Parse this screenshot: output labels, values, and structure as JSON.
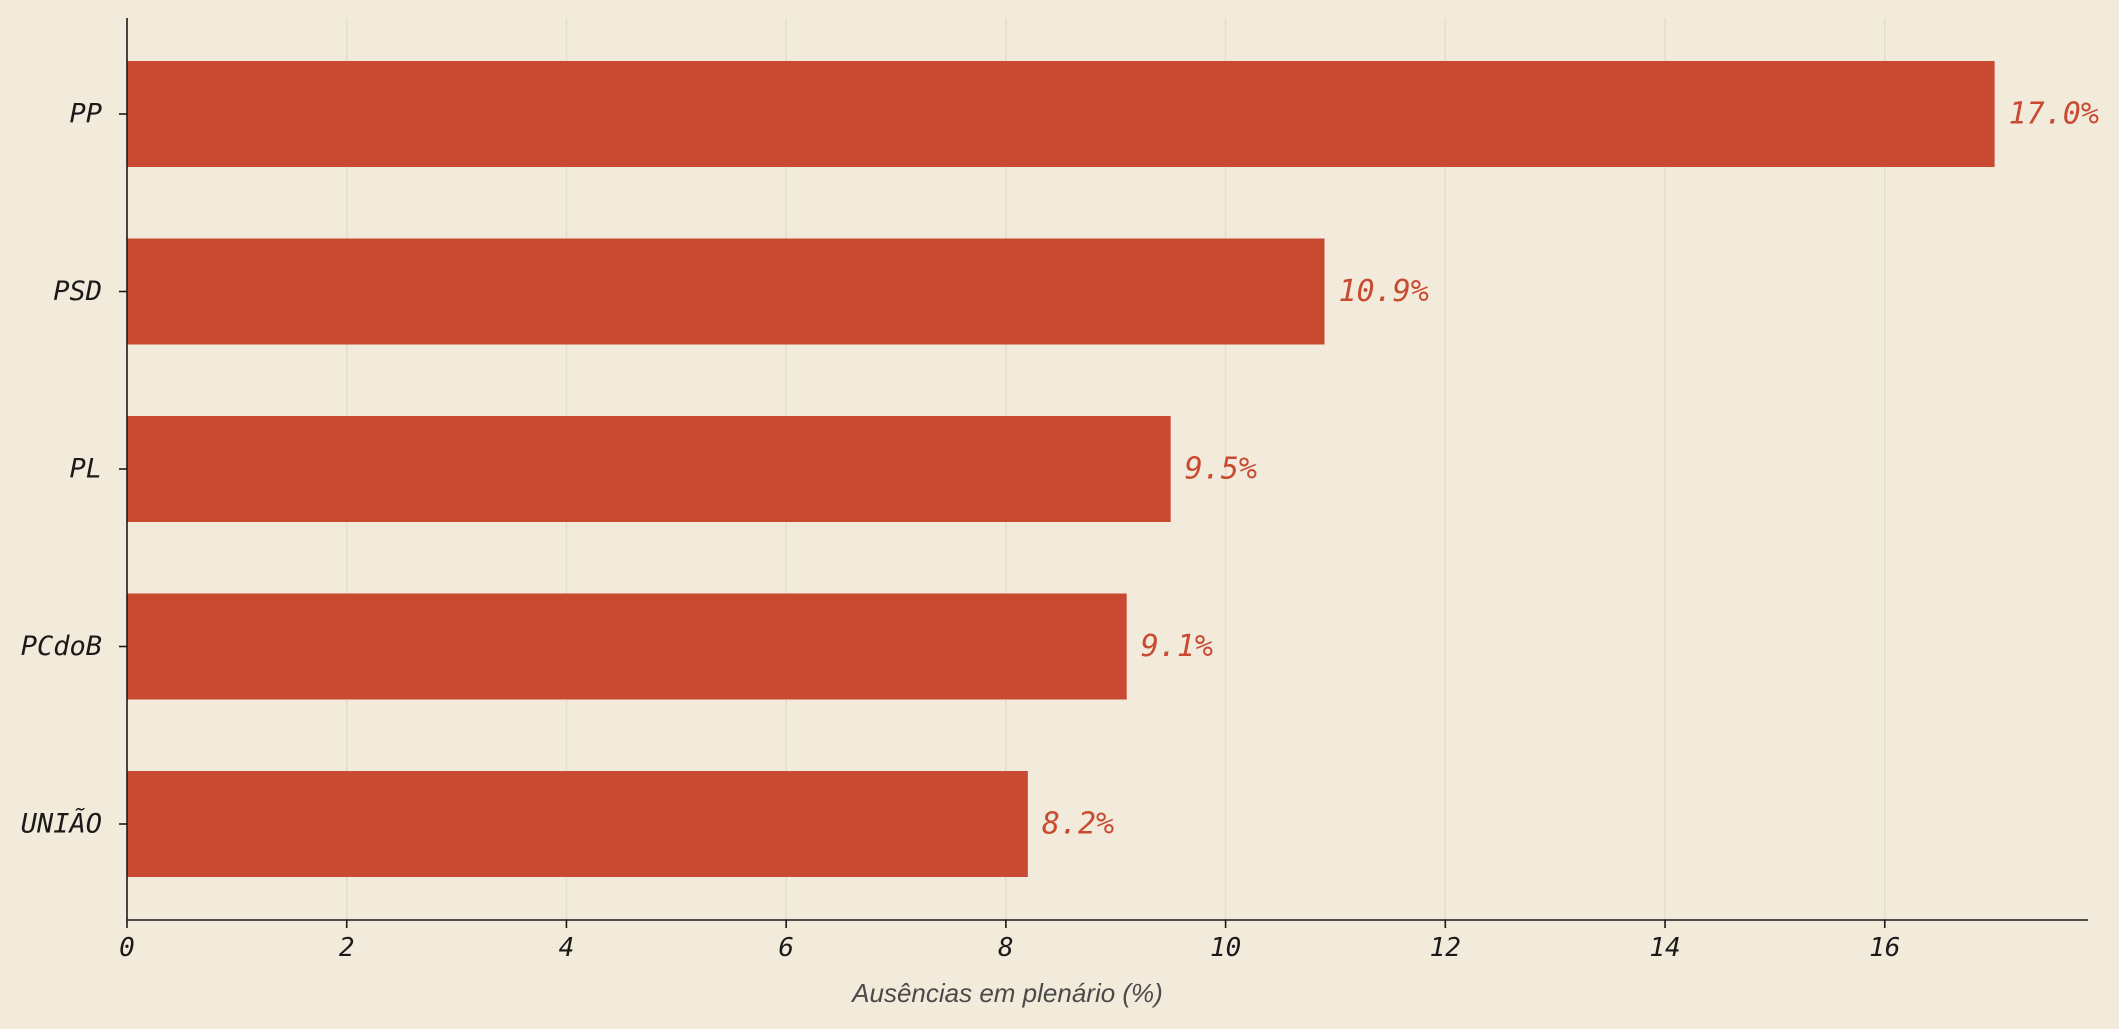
{
  "chart_data": {
    "type": "bar",
    "orientation": "horizontal",
    "categories": [
      "PP",
      "PSD",
      "PL",
      "PCdoB",
      "UNIÃO"
    ],
    "values": [
      17.0,
      10.9,
      9.5,
      9.1,
      8.2
    ],
    "value_labels": [
      "17.0%",
      "10.9%",
      "9.5%",
      "9.1%",
      "8.2%"
    ],
    "xlabel": "Ausências em plenário (%)",
    "ylabel": "",
    "xlim": [
      0,
      17.85
    ],
    "xticks": [
      0,
      2,
      4,
      6,
      8,
      10,
      12,
      14,
      16
    ],
    "xtick_labels": [
      "0",
      "2",
      "4",
      "6",
      "8",
      "10",
      "12",
      "14",
      "16"
    ],
    "grid": "vertical",
    "legend": "none",
    "colors": {
      "bar": "#c84b31",
      "value_label": "#c84b31",
      "background": "#f2eada"
    }
  }
}
